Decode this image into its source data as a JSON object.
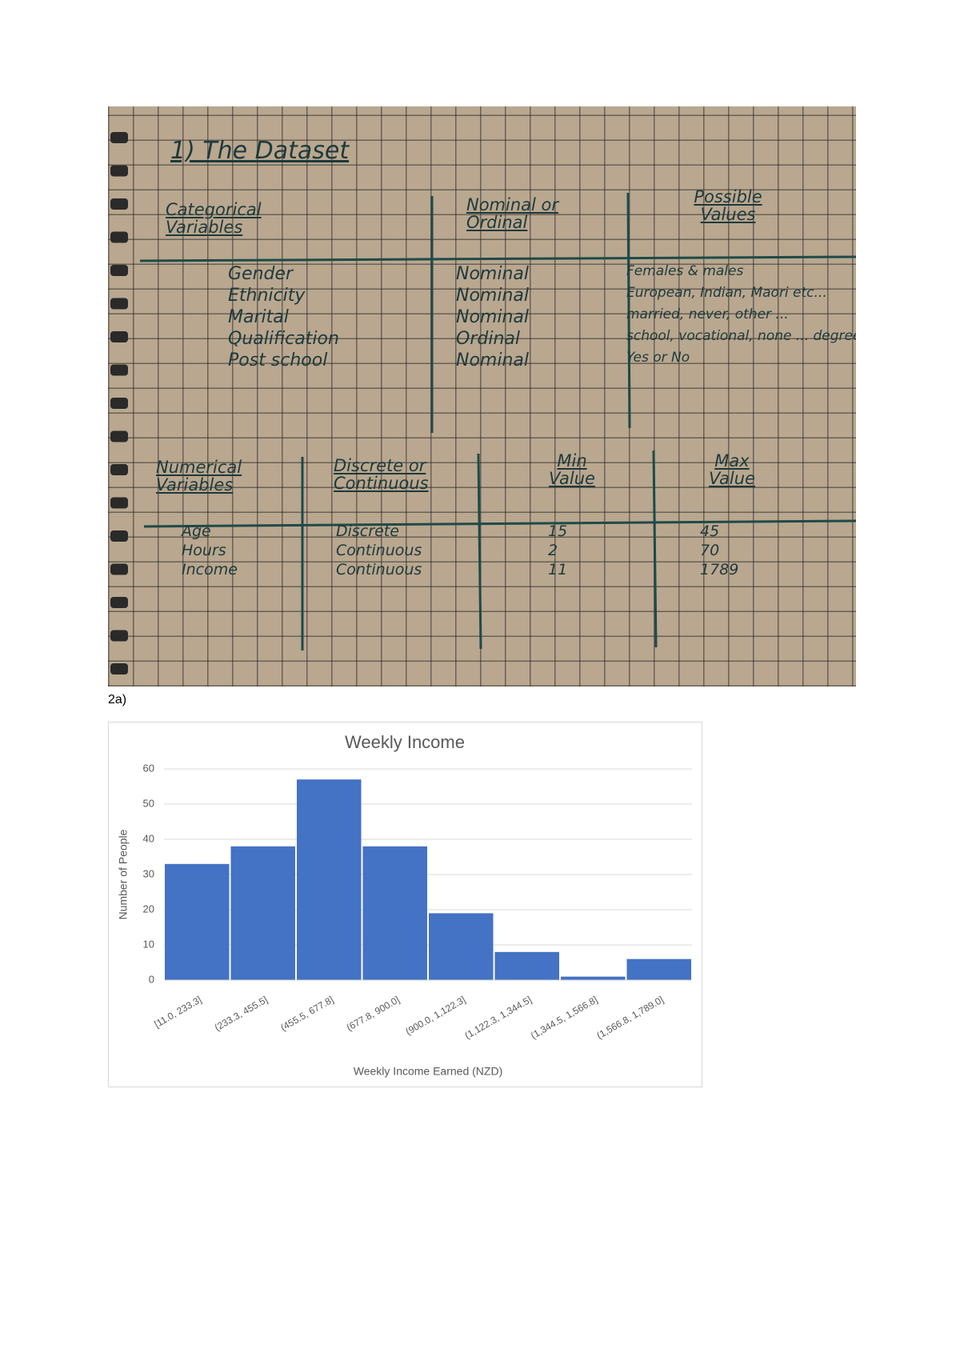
{
  "notes": {
    "title": "1) The Dataset",
    "categorical": {
      "headers": [
        "Categorical Variables",
        "Nominal or Ordinal",
        "Possible Values"
      ],
      "rows": [
        [
          "Gender",
          "Nominal",
          "Females & males"
        ],
        [
          "Ethnicity",
          "Nominal",
          "European, Indian, Maori etc..."
        ],
        [
          "Marital",
          "Nominal",
          "married, never, other ..."
        ],
        [
          "Qualification",
          "Ordinal",
          "school, vocational, none ... degree"
        ],
        [
          "Post school",
          "Nominal",
          "Yes or No"
        ]
      ]
    },
    "numerical": {
      "headers": [
        "Numerical Variables",
        "Discrete or Continuous",
        "Min Value",
        "Max Value"
      ],
      "rows": [
        [
          "Age",
          "Discrete",
          15,
          45
        ],
        [
          "Hours",
          "Continuous",
          2,
          70
        ],
        [
          "Income",
          "Continuous",
          11,
          1789
        ]
      ]
    }
  },
  "caption": "2a)",
  "chart_data": {
    "type": "bar",
    "title": "Weekly Income",
    "x_label": "Weekly Income Earned (NZD)",
    "y_label": "Number of People",
    "categories": [
      "[11.0, 233.3]",
      "(233.3, 455.5]",
      "(455.5, 677.8]",
      "(677.8, 900.0]",
      "(900.0, 1,122.3]",
      "(1,122.3, 1,344.5]",
      "(1,344.5, 1,566.8]",
      "(1,566.8, 1,789.0]"
    ],
    "values": [
      33,
      38,
      57,
      38,
      19,
      8,
      1,
      6
    ],
    "color": "#4472c4",
    "ylim": [
      0,
      60
    ],
    "yticks": [
      0,
      10,
      20,
      30,
      40,
      50,
      60
    ],
    "grid": true
  }
}
